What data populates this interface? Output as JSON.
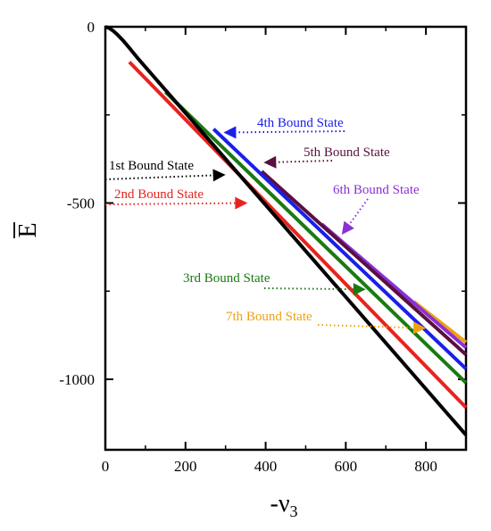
{
  "chart_data": {
    "type": "line",
    "xlabel": "-ν",
    "xlabel_sub": "3",
    "ylabel": "E",
    "xlim": [
      0,
      900
    ],
    "ylim": [
      -1200,
      0
    ],
    "x_ticks": [
      0,
      200,
      400,
      600,
      800
    ],
    "y_ticks": [
      0,
      -500,
      -1000
    ],
    "x_tick_labels": [
      "0",
      "200",
      "400",
      "600",
      "800"
    ],
    "y_tick_labels": [
      "0",
      "-500",
      "-1000"
    ],
    "grid": false,
    "series": [
      {
        "name": "1st Bound State",
        "color": "#000000",
        "x": [
          0,
          10,
          20,
          30,
          45,
          60,
          80,
          900
        ],
        "y": [
          0,
          -4,
          -12,
          -22,
          -40,
          -60,
          -88,
          -1158
        ]
      },
      {
        "name": "2nd Bound State",
        "color": "#e8231e",
        "x": [
          60,
          900
        ],
        "y": [
          -100,
          -1080
        ]
      },
      {
        "name": "3rd Bound State",
        "color": "#1a7a12",
        "x": [
          150,
          900
        ],
        "y": [
          -185,
          -1010
        ]
      },
      {
        "name": "4th Bound State",
        "color": "#1a20e8",
        "x": [
          270,
          900
        ],
        "y": [
          -290,
          -970
        ]
      },
      {
        "name": "5th Bound State",
        "color": "#5a1040",
        "x": [
          390,
          900
        ],
        "y": [
          -410,
          -930
        ]
      },
      {
        "name": "6th Bound State",
        "color": "#8a30d8",
        "x": [
          540,
          900
        ],
        "y": [
          -560,
          -910
        ]
      },
      {
        "name": "7th Bound State",
        "color": "#f0a010",
        "x": [
          770,
          900
        ],
        "y": [
          -780,
          -895
        ]
      }
    ],
    "annotations": [
      {
        "text": "1st Bound State",
        "color": "#000000",
        "series": 0,
        "arrow_tip": [
          300,
          -420
        ]
      },
      {
        "text": "2nd Bound State",
        "color": "#e8231e",
        "series": 1,
        "arrow_tip": [
          355,
          -500
        ]
      },
      {
        "text": "3rd Bound State",
        "color": "#1a7a12",
        "series": 2,
        "arrow_tip": [
          650,
          -745
        ]
      },
      {
        "text": "4th Bound State",
        "color": "#1a20e8",
        "series": 3,
        "arrow_tip": [
          295,
          -300
        ]
      },
      {
        "text": "5th Bound State",
        "color": "#5a1040",
        "series": 4,
        "arrow_tip": [
          395,
          -385
        ]
      },
      {
        "text": "6th Bound State",
        "color": "#8a30d8",
        "series": 5,
        "arrow_tip": [
          590,
          -590
        ]
      },
      {
        "text": "7th Bound State",
        "color": "#f0a010",
        "series": 6,
        "arrow_tip": [
          800,
          -855
        ]
      }
    ]
  }
}
